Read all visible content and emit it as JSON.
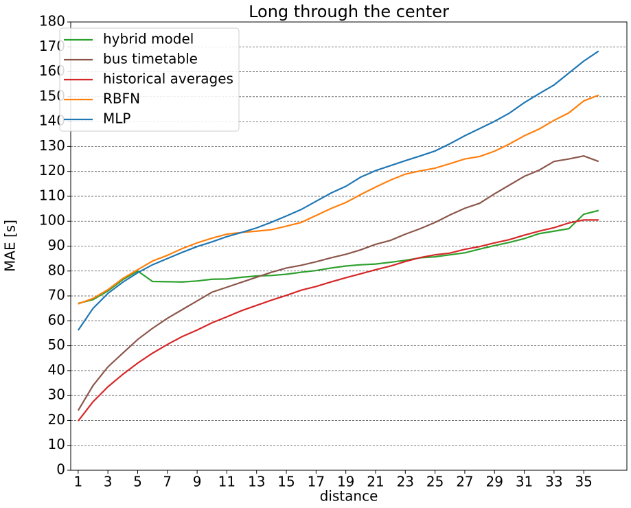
{
  "chart_data": {
    "type": "line",
    "title": "Long through the center",
    "x_label": "distance",
    "y_label": "MAE [s]",
    "x": [
      1,
      2,
      3,
      4,
      5,
      6,
      7,
      8,
      9,
      10,
      11,
      12,
      13,
      14,
      15,
      16,
      17,
      18,
      19,
      20,
      21,
      22,
      23,
      24,
      25,
      26,
      27,
      28,
      29,
      30,
      31,
      32,
      33,
      34,
      35,
      36
    ],
    "xlim": [
      0.5,
      37.9
    ],
    "xticks": [
      1,
      3,
      5,
      7,
      9,
      11,
      13,
      15,
      17,
      19,
      21,
      23,
      25,
      27,
      29,
      31,
      33,
      35
    ],
    "ylim": [
      0,
      180
    ],
    "yticks": [
      0,
      10,
      20,
      30,
      40,
      50,
      60,
      70,
      80,
      90,
      100,
      110,
      120,
      130,
      140,
      150,
      160,
      170,
      180
    ],
    "grid": true,
    "legend": "upper left",
    "series": [
      {
        "name": "hybrid model",
        "color": "#2ca02c",
        "values": [
          67,
          68.5,
          72,
          76.5,
          80,
          75.8,
          75.7,
          75.6,
          76,
          76.7,
          76.8,
          77.5,
          78,
          78.2,
          78.7,
          79.5,
          80.2,
          81.2,
          82,
          82.5,
          82.8,
          83.5,
          84.3,
          85.3,
          85.7,
          86.5,
          87.3,
          88.8,
          90.2,
          91.5,
          93,
          95,
          96,
          97,
          102.8,
          104.3
        ]
      },
      {
        "name": "bus timetable",
        "color": "#8c564b",
        "values": [
          24,
          34,
          41.5,
          47,
          52.5,
          57,
          61,
          64.5,
          68,
          71.5,
          73.5,
          75.5,
          77.5,
          79.5,
          81.2,
          82.3,
          83.7,
          85.3,
          86.7,
          88.5,
          90.7,
          92.3,
          94.8,
          97,
          99.5,
          102.5,
          105.2,
          107.2,
          111,
          114.5,
          118,
          120.5,
          124,
          125,
          126.2,
          124
        ]
      },
      {
        "name": "historical averages",
        "color": "#d62728",
        "values": [
          19.8,
          27.5,
          33.5,
          38.5,
          43,
          47,
          50.5,
          53.7,
          56.3,
          59.2,
          61.6,
          64.1,
          66.2,
          68.3,
          70.2,
          72.3,
          73.8,
          75.6,
          77.3,
          78.9,
          80.5,
          82,
          83.8,
          85.4,
          86.5,
          87.2,
          88.7,
          89.8,
          91.3,
          92.6,
          94.4,
          96,
          97.4,
          99.3,
          100.5,
          100.5
        ]
      },
      {
        "name": "RBFN",
        "color": "#ff7f0e",
        "values": [
          66.8,
          69,
          72.5,
          77,
          80.5,
          84,
          86.3,
          89,
          91.3,
          93.2,
          94.8,
          95.5,
          96,
          96.6,
          98,
          99.5,
          102.3,
          105.1,
          107.5,
          110.7,
          113.7,
          116.5,
          118.9,
          120.2,
          121.3,
          123.1,
          125,
          126,
          128.1,
          131,
          134.3,
          137,
          140.5,
          143.5,
          148.3,
          150.6
        ]
      },
      {
        "name": "MLP",
        "color": "#1f77b4",
        "values": [
          56.2,
          65,
          71,
          75.5,
          79.3,
          82.5,
          85,
          87.5,
          89.8,
          91.7,
          93.8,
          95.5,
          97.3,
          99.6,
          102.1,
          104.7,
          108,
          111.3,
          114,
          117.7,
          120.3,
          122.3,
          124.3,
          126.2,
          128.2,
          131.1,
          134.3,
          137.2,
          140.1,
          143.4,
          147.6,
          151.2,
          154.7,
          159.5,
          164.3,
          168.3
        ]
      }
    ]
  }
}
